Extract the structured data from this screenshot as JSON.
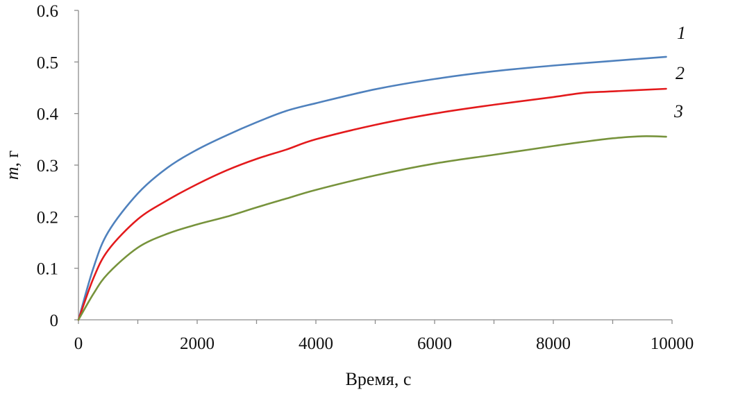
{
  "chart_data": {
    "type": "line",
    "xlabel": "Время,  с",
    "ylabel_italic": "m",
    "ylabel_rest": ", г",
    "xlim": [
      0,
      10000
    ],
    "ylim": [
      0,
      0.6
    ],
    "xticks": [
      0,
      2000,
      4000,
      6000,
      8000,
      10000
    ],
    "xticks_minor": [
      1000,
      3000,
      5000,
      7000,
      9000
    ],
    "yticks": [
      0,
      0.1,
      0.2,
      0.3,
      0.4,
      0.5,
      0.6
    ],
    "x_tick_labels": [
      "0",
      "2000",
      "4000",
      "6000",
      "8000",
      "10000"
    ],
    "y_tick_labels": [
      "0",
      "0.1",
      "0.2",
      "0.3",
      "0.4",
      "0.5",
      "0.6"
    ],
    "grid": false,
    "legend": "inline-labels",
    "series": [
      {
        "name": "1",
        "color": "#4f81bd",
        "x": [
          0,
          250,
          500,
          1000,
          1500,
          2000,
          2500,
          3000,
          3500,
          4000,
          5000,
          6000,
          7000,
          8000,
          9000,
          9900
        ],
        "y": [
          0,
          0.1,
          0.17,
          0.245,
          0.295,
          0.33,
          0.358,
          0.383,
          0.405,
          0.42,
          0.447,
          0.467,
          0.482,
          0.493,
          0.502,
          0.51
        ]
      },
      {
        "name": "2",
        "color": "#e31a1c",
        "x": [
          0,
          250,
          500,
          1000,
          1500,
          2000,
          2500,
          3000,
          3500,
          4000,
          5000,
          6000,
          7000,
          8000,
          8500,
          9000,
          9900
        ],
        "y": [
          0,
          0.08,
          0.135,
          0.195,
          0.232,
          0.263,
          0.29,
          0.312,
          0.33,
          0.35,
          0.378,
          0.4,
          0.417,
          0.432,
          0.44,
          0.443,
          0.448
        ]
      },
      {
        "name": "3",
        "color": "#77933c",
        "x": [
          0,
          250,
          500,
          1000,
          1500,
          2000,
          2500,
          3000,
          3500,
          4000,
          5000,
          6000,
          7000,
          8000,
          8500,
          9000,
          9500,
          9900
        ],
        "y": [
          0,
          0.05,
          0.09,
          0.14,
          0.167,
          0.185,
          0.2,
          0.218,
          0.235,
          0.252,
          0.28,
          0.303,
          0.32,
          0.337,
          0.345,
          0.352,
          0.356,
          0.355
        ]
      }
    ]
  }
}
